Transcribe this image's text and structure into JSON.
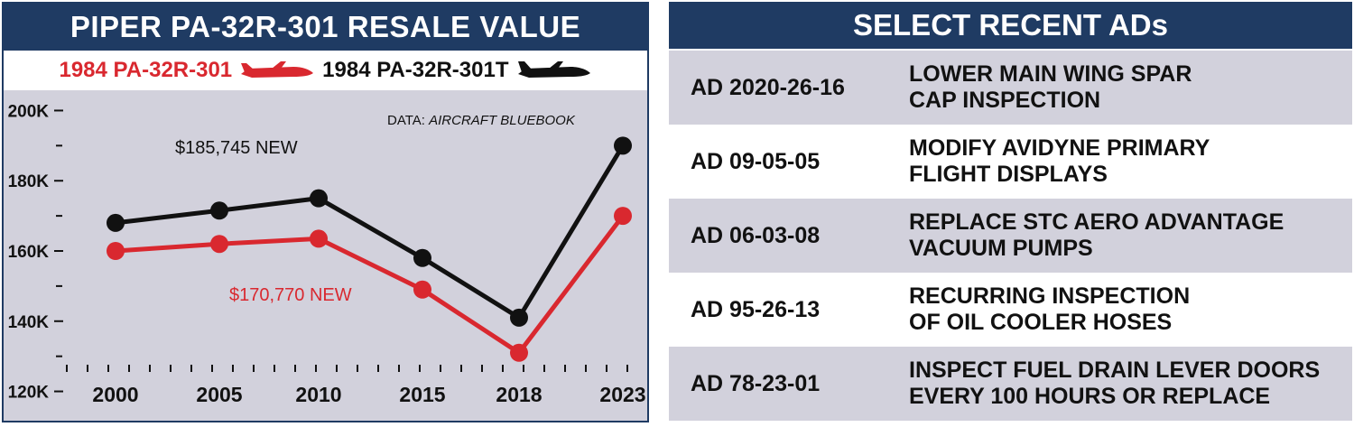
{
  "left_panel": {
    "title": "PIPER PA-32R-301 RESALE VALUE",
    "legend": [
      {
        "label": "1984 PA-32R-301",
        "color": "#d9282f",
        "icon": "airplane-icon"
      },
      {
        "label": "1984 PA-32R-301T",
        "color": "#111111",
        "icon": "airplane-icon"
      }
    ],
    "source_prefix": "DATA:",
    "source_name": "AIRCRAFT BLUEBOOK"
  },
  "chart_data": {
    "type": "line",
    "x": [
      "2000",
      "2005",
      "2010",
      "2015",
      "2018",
      "2023"
    ],
    "series": [
      {
        "name": "1984 PA-32R-301",
        "color": "#d9282f",
        "values": [
          160000,
          162000,
          163500,
          149000,
          131000,
          170000
        ]
      },
      {
        "name": "1984 PA-32R-301T",
        "color": "#111111",
        "values": [
          168000,
          171500,
          175000,
          158000,
          141000,
          190000
        ]
      }
    ],
    "yticks": [
      "120K",
      "140K",
      "160K",
      "180K",
      "200K"
    ],
    "ylim": [
      115000,
      205000
    ],
    "annotations": [
      {
        "text": "$185,745 NEW",
        "color": "#111111"
      },
      {
        "text": "$170,770 NEW",
        "color": "#d9282f"
      }
    ],
    "grid": false
  },
  "right_panel": {
    "title": "SELECT RECENT ADs",
    "rows": [
      {
        "number": "AD 2020-26-16",
        "lines": [
          "LOWER MAIN WING SPAR",
          "CAP INSPECTION"
        ]
      },
      {
        "number": "AD 09-05-05",
        "lines": [
          "MODIFY AVIDYNE PRIMARY",
          "FLIGHT DISPLAYS"
        ]
      },
      {
        "number": "AD 06-03-08",
        "lines": [
          "REPLACE STC AERO ADVANTAGE",
          "VACUUM PUMPS"
        ]
      },
      {
        "number": "AD 95-26-13",
        "lines": [
          "RECURRING INSPECTION",
          "OF OIL COOLER HOSES"
        ]
      },
      {
        "number": "AD 78-23-01",
        "lines": [
          "INSPECT FUEL DRAIN LEVER DOORS",
          "EVERY 100 HOURS OR REPLACE"
        ]
      }
    ]
  }
}
